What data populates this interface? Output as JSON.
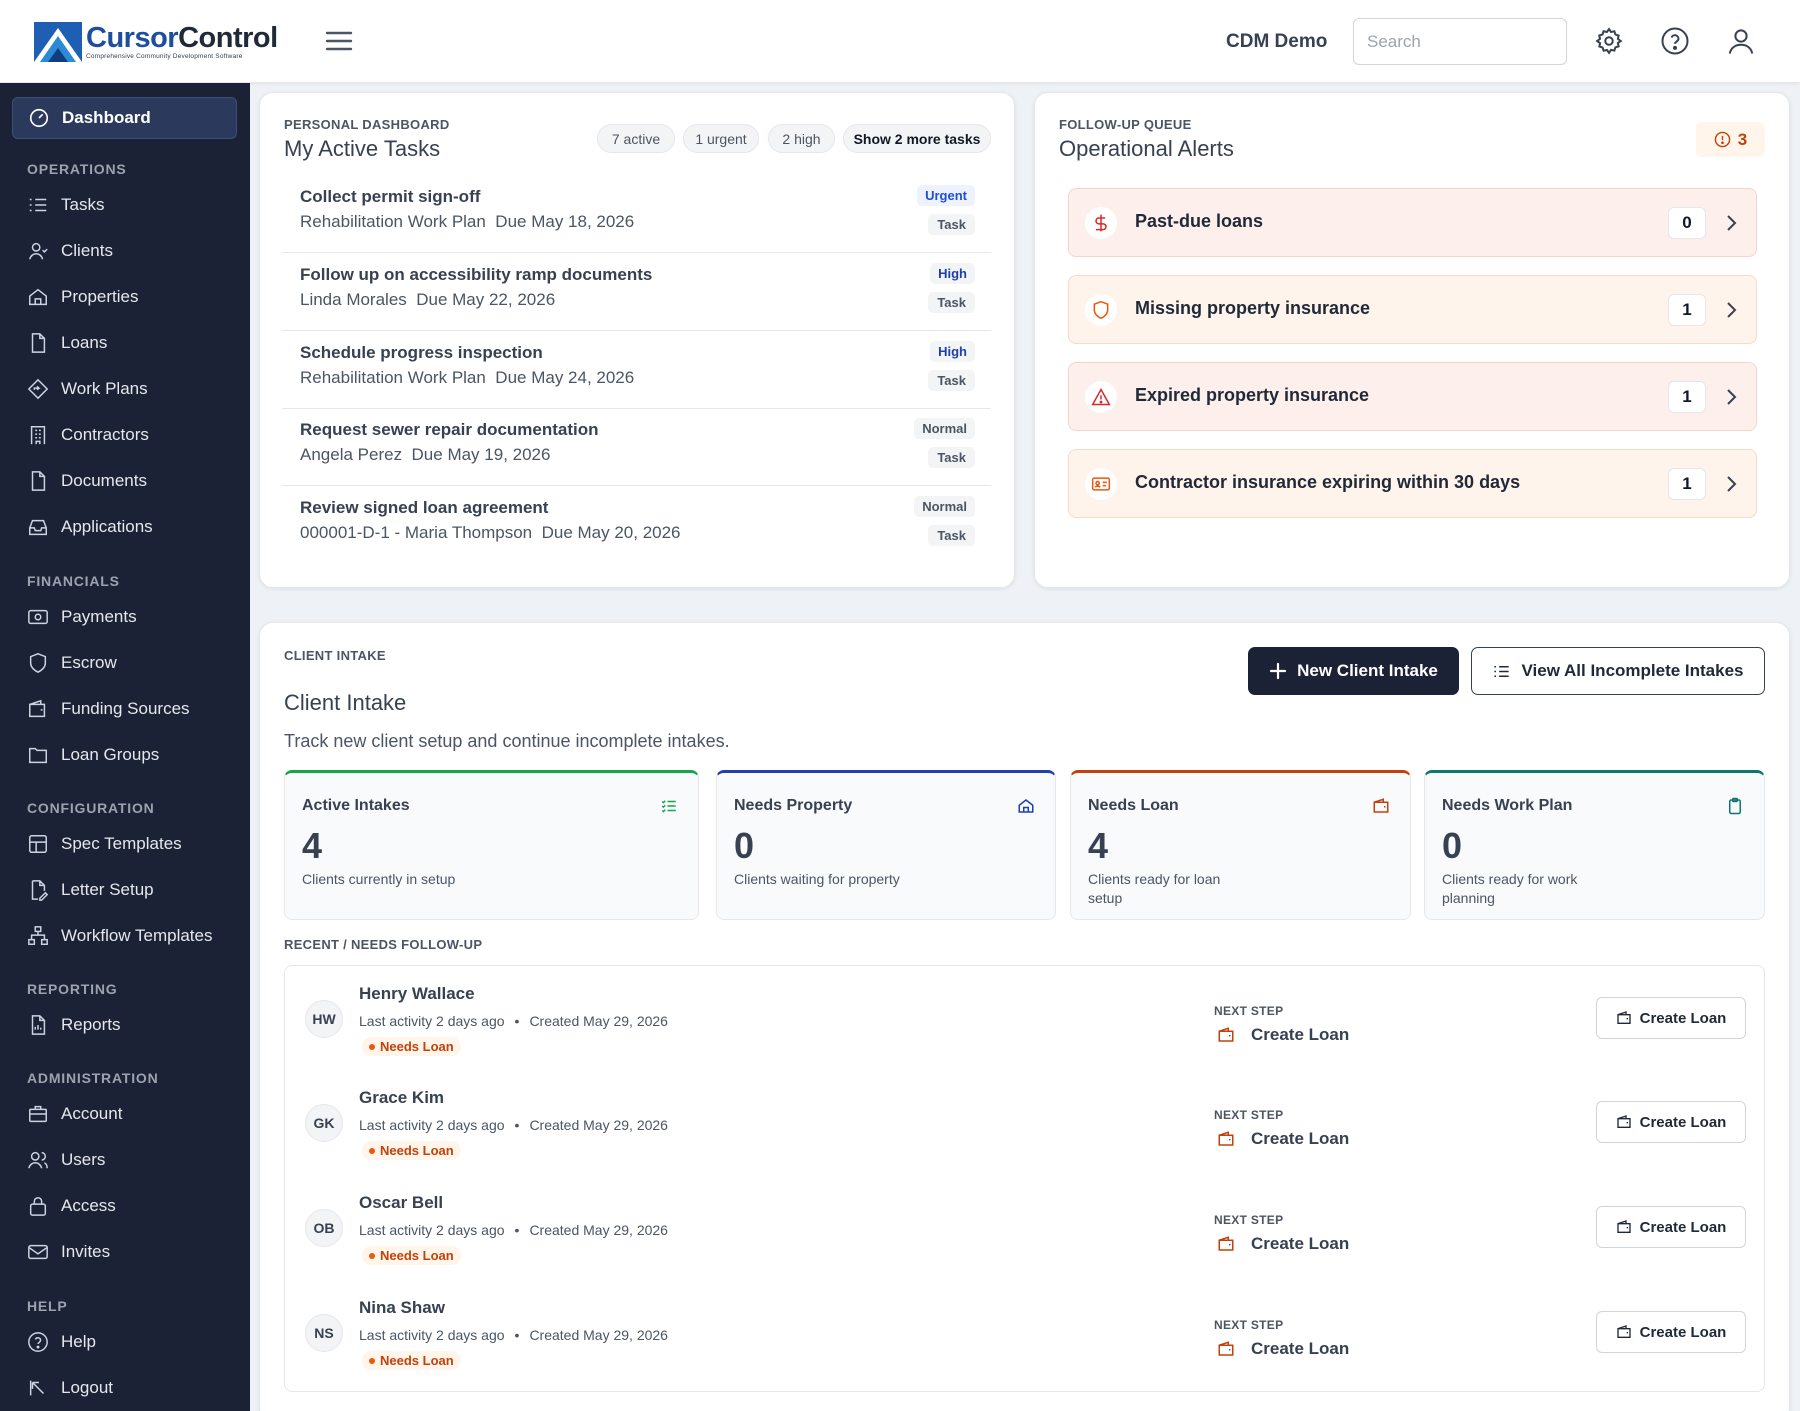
{
  "app": {
    "logo_cursor": "Cursor",
    "logo_control": "Control",
    "logo_tagline": "Comprehensive Community Development Software"
  },
  "header": {
    "org_name": "CDM Demo",
    "search_placeholder": "Search"
  },
  "sidebar": {
    "dashboard": "Dashboard",
    "sections": {
      "operations": "OPERATIONS",
      "financials": "FINANCIALS",
      "configuration": "CONFIGURATION",
      "reporting": "REPORTING",
      "administration": "ADMINISTRATION",
      "help": "HELP"
    },
    "items": {
      "tasks": "Tasks",
      "clients": "Clients",
      "properties": "Properties",
      "loans": "Loans",
      "work_plans": "Work Plans",
      "contractors": "Contractors",
      "documents": "Documents",
      "applications": "Applications",
      "payments": "Payments",
      "escrow": "Escrow",
      "funding_sources": "Funding Sources",
      "loan_groups": "Loan Groups",
      "spec_templates": "Spec Templates",
      "letter_setup": "Letter Setup",
      "workflow_templates": "Workflow Templates",
      "reports": "Reports",
      "account": "Account",
      "users": "Users",
      "access": "Access",
      "invites": "Invites",
      "help": "Help",
      "logout": "Logout"
    }
  },
  "tasks_card": {
    "eyebrow": "PERSONAL DASHBOARD",
    "title": "My Active Tasks",
    "pills": [
      "7 active",
      "1 urgent",
      "2 high"
    ],
    "show_more": "Show 2 more tasks",
    "tasks": [
      {
        "title": "Collect permit sign-off",
        "context": "Rehabilitation Work Plan",
        "due": "Due May 18, 2026",
        "priority": "Urgent",
        "type": "Task"
      },
      {
        "title": "Follow up on accessibility ramp documents",
        "context": "Linda Morales",
        "due": "Due May 22, 2026",
        "priority": "High",
        "type": "Task"
      },
      {
        "title": "Schedule progress inspection",
        "context": "Rehabilitation Work Plan",
        "due": "Due May 24, 2026",
        "priority": "High",
        "type": "Task"
      },
      {
        "title": "Request sewer repair documentation",
        "context": "Angela Perez",
        "due": "Due May 19, 2026",
        "priority": "Normal",
        "type": "Task"
      },
      {
        "title": "Review signed loan agreement",
        "context": "000001-D-1 - Maria Thompson",
        "due": "Due May 20, 2026",
        "priority": "Normal",
        "type": "Task"
      }
    ]
  },
  "alerts_card": {
    "eyebrow": "FOLLOW-UP QUEUE",
    "title": "Operational Alerts",
    "total": "3",
    "alerts": [
      {
        "title": "Past-due loans",
        "count": "0",
        "icon": "dollar-icon"
      },
      {
        "title": "Missing property insurance",
        "count": "1",
        "icon": "shield-icon"
      },
      {
        "title": "Expired property insurance",
        "count": "1",
        "icon": "warning-triangle-icon"
      },
      {
        "title": "Contractor insurance expiring within 30 days",
        "count": "1",
        "icon": "id-card-icon"
      }
    ]
  },
  "intake": {
    "eyebrow": "CLIENT INTAKE",
    "title": "Client Intake",
    "description": "Track new client setup and continue incomplete intakes.",
    "new_button": "New Client Intake",
    "view_all_button": "View All Incomplete Intakes",
    "stats": [
      {
        "title": "Active Intakes",
        "value": "4",
        "desc": "Clients currently in setup",
        "color": "#16a34a",
        "icon": "list-check-icon"
      },
      {
        "title": "Needs Property",
        "value": "0",
        "desc": "Clients waiting for property",
        "color": "#1e40af",
        "icon": "home-icon"
      },
      {
        "title": "Needs Loan",
        "value": "4",
        "desc": "Clients ready for loan setup",
        "color": "#c2410c",
        "icon": "wallet-icon"
      },
      {
        "title": "Needs Work Plan",
        "value": "0",
        "desc": "Clients ready for work planning",
        "color": "#0f766e",
        "icon": "clipboard-icon"
      }
    ],
    "recent_label": "RECENT / NEEDS FOLLOW-UP",
    "recent": [
      {
        "initials": "HW",
        "name": "Henry Wallace",
        "activity": "Last activity 2 days ago",
        "created": "Created May 29, 2026",
        "status": "Needs Loan",
        "next_step_label": "NEXT STEP",
        "next_step": "Create Loan",
        "action": "Create Loan"
      },
      {
        "initials": "GK",
        "name": "Grace Kim",
        "activity": "Last activity 2 days ago",
        "created": "Created May 29, 2026",
        "status": "Needs Loan",
        "next_step_label": "NEXT STEP",
        "next_step": "Create Loan",
        "action": "Create Loan"
      },
      {
        "initials": "OB",
        "name": "Oscar Bell",
        "activity": "Last activity 2 days ago",
        "created": "Created May 29, 2026",
        "status": "Needs Loan",
        "next_step_label": "NEXT STEP",
        "next_step": "Create Loan",
        "action": "Create Loan"
      },
      {
        "initials": "NS",
        "name": "Nina Shaw",
        "activity": "Last activity 2 days ago",
        "created": "Created May 29, 2026",
        "status": "Needs Loan",
        "next_step_label": "NEXT STEP",
        "next_step": "Create Loan",
        "action": "Create Loan"
      }
    ]
  },
  "colors": {
    "sidebar_bg": "#1b2235",
    "urgent": "#1d4ed8",
    "alert_orange": "#c2410c"
  }
}
